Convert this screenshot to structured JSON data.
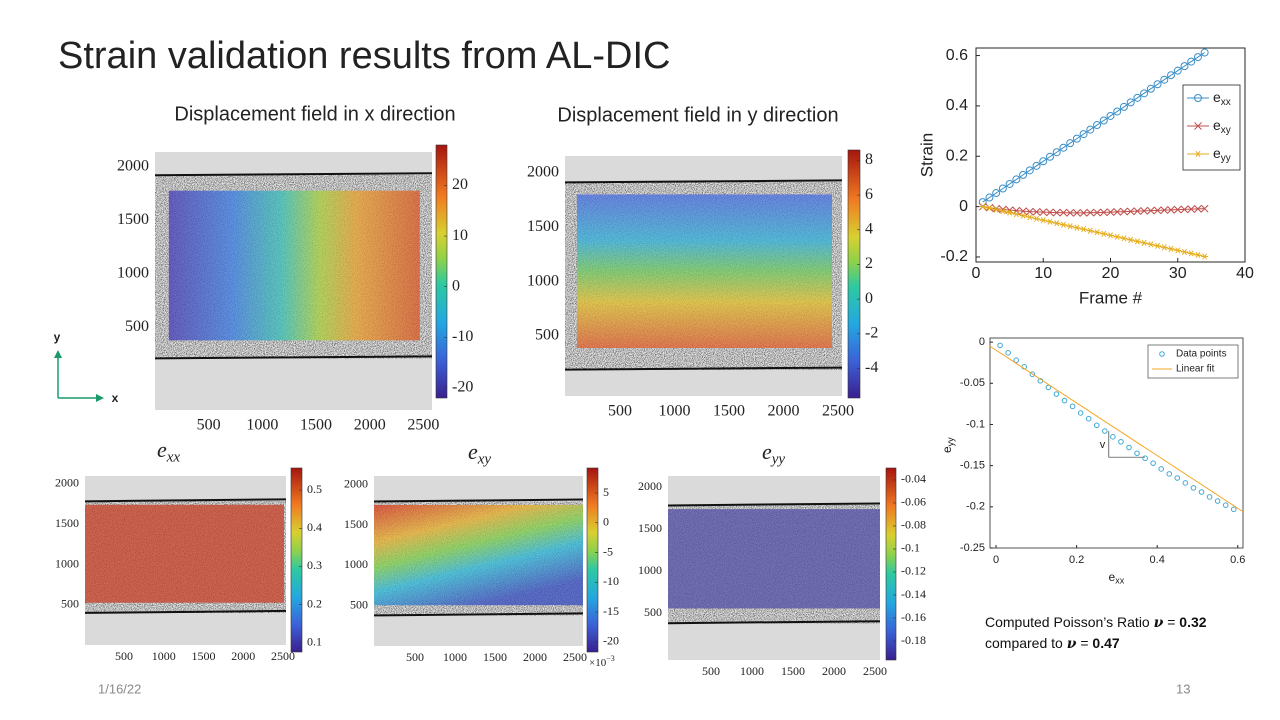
{
  "title": "Strain validation results from AL-DIC",
  "axis_hint": {
    "y": "y",
    "x": "x"
  },
  "note": {
    "line1": "Computed Poisson’s Ratio",
    "symbol": "ν",
    "equals": "=",
    "computed": 0.32,
    "line2": "compared to",
    "reference": 0.47
  },
  "footer": {
    "date": "1/16/22",
    "page": "13"
  },
  "chart_data": [
    {
      "type": "heatmap",
      "title": "Displacement field in x direction",
      "xlim": [
        0,
        2580
      ],
      "ylim": [
        -270,
        2140
      ],
      "xticks": [
        500,
        1000,
        1500,
        2000,
        2500
      ],
      "yticks": [
        500,
        1000,
        1500,
        2000
      ],
      "clim": [
        -22,
        28
      ],
      "cticks": [
        -20,
        -10,
        0,
        10,
        20
      ]
    },
    {
      "type": "heatmap",
      "title": "Displacement field in y direction",
      "xlim": [
        -5,
        2537
      ],
      "ylim": [
        -52,
        2156
      ],
      "xticks": [
        500,
        1000,
        1500,
        2000,
        2500
      ],
      "yticks": [
        500,
        1000,
        1500,
        2000
      ],
      "clim": [
        -5.7,
        8.6
      ],
      "cticks": [
        -4,
        -2,
        0,
        2,
        4,
        6,
        8
      ]
    },
    {
      "type": "heatmap",
      "title": "e",
      "title_sub": "xx",
      "xlim": [
        9,
        2538
      ],
      "ylim": [
        4,
        2099
      ],
      "xticks": [
        500,
        1000,
        1500,
        2000,
        2500
      ],
      "yticks": [
        500,
        1000,
        1500,
        2000
      ],
      "clim": [
        0.076,
        0.558
      ],
      "cticks": [
        0.1,
        0.2,
        0.3,
        0.4,
        0.5
      ]
    },
    {
      "type": "heatmap",
      "title": "e",
      "title_sub": "xy",
      "xlim": [
        -12,
        2600
      ],
      "ylim": [
        -2,
        2110
      ],
      "xticks": [
        500,
        1000,
        1500,
        2000,
        2500
      ],
      "yticks": [
        500,
        1000,
        1500,
        2000
      ],
      "clim": [
        -21.7,
        9.2
      ],
      "cticks": [
        -20,
        -15,
        -10,
        -5,
        0,
        5
      ],
      "cscale": {
        "base": "×10",
        "exponent": "−3"
      }
    },
    {
      "type": "heatmap",
      "title": "e",
      "title_sub": "yy",
      "xlim": [
        -24,
        2561
      ],
      "ylim": [
        -59,
        2131
      ],
      "xticks": [
        500,
        1000,
        1500,
        2000,
        2500
      ],
      "yticks": [
        500,
        1000,
        1500,
        2000
      ],
      "clim": [
        -0.1965,
        -0.0296
      ],
      "cticks": [
        -0.18,
        -0.16,
        -0.14,
        -0.12,
        -0.1,
        -0.08,
        -0.06,
        -0.04
      ]
    },
    {
      "type": "line",
      "xlabel": "Frame #",
      "ylabel": "Strain",
      "legend": "upper right",
      "xlim": [
        0,
        40
      ],
      "xticks": [
        0,
        10,
        20,
        30,
        40
      ],
      "ylim": [
        -0.22,
        0.63
      ],
      "yticks": [
        -0.2,
        0,
        0.2,
        0.4,
        0.6
      ],
      "x": [
        1,
        2,
        3,
        4,
        5,
        6,
        7,
        8,
        9,
        10,
        11,
        12,
        13,
        14,
        15,
        16,
        17,
        18,
        19,
        20,
        21,
        22,
        23,
        24,
        25,
        26,
        27,
        28,
        29,
        30,
        31,
        32,
        33,
        34
      ],
      "series": [
        {
          "name": "e",
          "sub": "xx",
          "color": "#3a8fc9",
          "marker": "o",
          "values": [
            0.018,
            0.036,
            0.054,
            0.072,
            0.09,
            0.108,
            0.126,
            0.144,
            0.162,
            0.18,
            0.198,
            0.216,
            0.234,
            0.252,
            0.27,
            0.288,
            0.306,
            0.324,
            0.342,
            0.36,
            0.378,
            0.396,
            0.414,
            0.432,
            0.45,
            0.468,
            0.486,
            0.504,
            0.522,
            0.54,
            0.558,
            0.576,
            0.594,
            0.612
          ]
        },
        {
          "name": "e",
          "sub": "xy",
          "color": "#c0504d",
          "marker": "x",
          "values": [
            0,
            -0.004,
            -0.008,
            -0.011,
            -0.014,
            -0.016,
            -0.018,
            -0.02,
            -0.021,
            -0.022,
            -0.023,
            -0.024,
            -0.024,
            -0.025,
            -0.025,
            -0.025,
            -0.024,
            -0.024,
            -0.023,
            -0.022,
            -0.021,
            -0.02,
            -0.019,
            -0.018,
            -0.017,
            -0.016,
            -0.015,
            -0.014,
            -0.013,
            -0.012,
            -0.011,
            -0.01,
            -0.009,
            -0.008
          ]
        },
        {
          "name": "e",
          "sub": "yy",
          "color": "#e6ae1e",
          "marker": "*",
          "values": [
            0,
            -0.006,
            -0.012,
            -0.018,
            -0.024,
            -0.03,
            -0.036,
            -0.042,
            -0.048,
            -0.054,
            -0.06,
            -0.066,
            -0.072,
            -0.078,
            -0.084,
            -0.09,
            -0.096,
            -0.102,
            -0.108,
            -0.114,
            -0.12,
            -0.126,
            -0.132,
            -0.138,
            -0.144,
            -0.15,
            -0.156,
            -0.162,
            -0.168,
            -0.174,
            -0.18,
            -0.186,
            -0.192,
            -0.198
          ]
        }
      ]
    },
    {
      "type": "scatter",
      "xlabel": "e",
      "xlabel_sub": "xx",
      "ylabel": "e",
      "ylabel_sub": "yy",
      "annotation": "v",
      "legend": "upper right",
      "xlim": [
        -0.015,
        0.613
      ],
      "xticks": [
        0,
        0.2,
        0.4,
        0.6
      ],
      "ylim": [
        -0.25,
        0.005
      ],
      "yticks": [
        -0.25,
        -0.2,
        -0.15,
        -0.1,
        -0.05,
        0
      ],
      "series": [
        {
          "name": "Data points",
          "color": "#3fa9d5",
          "marker": "o",
          "x": [
            0.01,
            0.03,
            0.05,
            0.07,
            0.09,
            0.11,
            0.13,
            0.15,
            0.17,
            0.19,
            0.21,
            0.23,
            0.25,
            0.27,
            0.29,
            0.31,
            0.33,
            0.35,
            0.37,
            0.39,
            0.41,
            0.43,
            0.45,
            0.47,
            0.49,
            0.51,
            0.53,
            0.55,
            0.57,
            0.59
          ],
          "values": [
            -0.004,
            -0.013,
            -0.022,
            -0.03,
            -0.039,
            -0.047,
            -0.055,
            -0.063,
            -0.071,
            -0.078,
            -0.086,
            -0.093,
            -0.101,
            -0.108,
            -0.115,
            -0.121,
            -0.128,
            -0.135,
            -0.141,
            -0.147,
            -0.154,
            -0.16,
            -0.165,
            -0.171,
            -0.177,
            -0.182,
            -0.188,
            -0.193,
            -0.198,
            -0.203
          ]
        },
        {
          "name": "Linear fit",
          "color": "#f5a623",
          "marker": "none",
          "x": [
            -0.015,
            0.613
          ],
          "values": [
            -0.005,
            -0.206
          ]
        }
      ]
    }
  ]
}
